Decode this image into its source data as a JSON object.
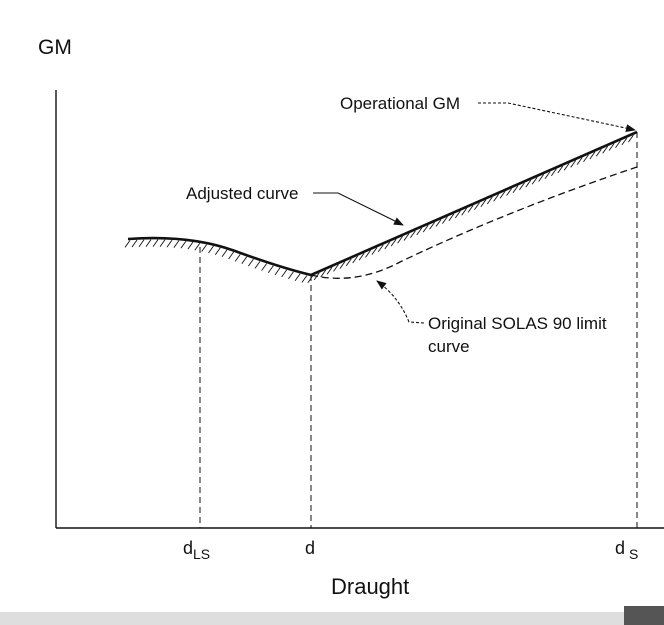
{
  "diagram": {
    "y_axis_label": "GM",
    "x_axis_label": "Draught",
    "ticks": {
      "d_ls_main": "d",
      "d_ls_sub": "LS",
      "d": "d",
      "d_s_main": "d",
      "d_s_sub": "S"
    },
    "annotations": {
      "operational_gm": "Operational GM",
      "adjusted_curve": "Adjusted curve",
      "original_line1": "Original SOLAS 90 limit",
      "original_line2": "curve"
    },
    "colors": {
      "ink": "#111111",
      "paper": "#ffffff",
      "scan_band": "#dedede"
    }
  }
}
